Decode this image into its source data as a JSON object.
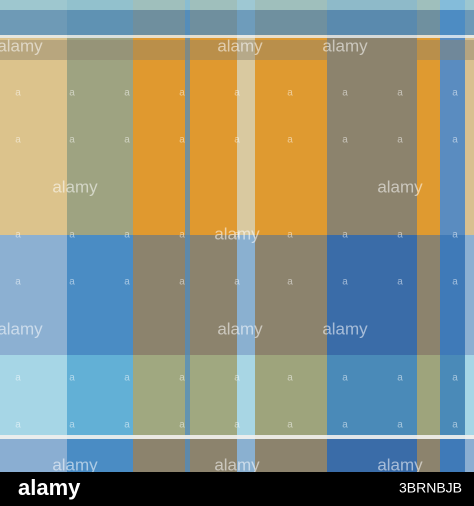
{
  "watermark": "alamy",
  "watermark_mark": "a",
  "logo": "alamy",
  "image_id": "3BRNBJB"
}
